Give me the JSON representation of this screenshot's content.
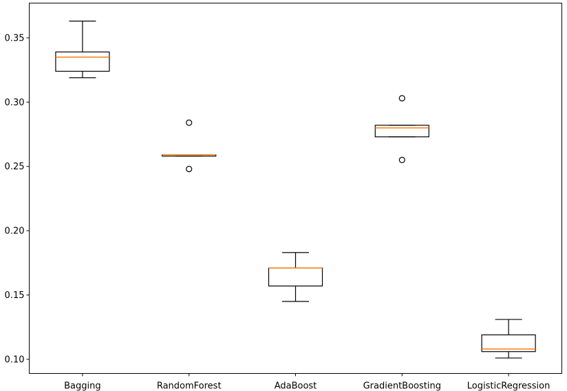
{
  "chart_data": {
    "type": "boxplot",
    "title": "",
    "xlabel": "",
    "ylabel": "",
    "ylim": [
      0.089,
      0.377
    ],
    "yticks": [
      0.1,
      0.15,
      0.2,
      0.25,
      0.3,
      0.35
    ],
    "ytick_labels": [
      "0.10",
      "0.15",
      "0.20",
      "0.25",
      "0.30",
      "0.35"
    ],
    "grid": false,
    "colors": {
      "box": "#000000",
      "median": "#ff7f0e",
      "flier": "#000000",
      "axes": "#000000"
    },
    "categories": [
      "Bagging",
      "RandomForest",
      "AdaBoost",
      "GradientBoosting",
      "LogisticRegression"
    ],
    "boxes": [
      {
        "label": "Bagging",
        "whisker_low": 0.319,
        "q1": 0.324,
        "median": 0.335,
        "q3": 0.339,
        "whisker_high": 0.363,
        "fliers": []
      },
      {
        "label": "RandomForest",
        "whisker_low": 0.258,
        "q1": 0.258,
        "median": 0.259,
        "q3": 0.259,
        "whisker_high": 0.259,
        "fliers": [
          0.284,
          0.248
        ]
      },
      {
        "label": "AdaBoost",
        "whisker_low": 0.145,
        "q1": 0.157,
        "median": 0.171,
        "q3": 0.171,
        "whisker_high": 0.183,
        "fliers": []
      },
      {
        "label": "GradientBoosting",
        "whisker_low": 0.273,
        "q1": 0.273,
        "median": 0.28,
        "q3": 0.282,
        "whisker_high": 0.282,
        "fliers": [
          0.303,
          0.255
        ]
      },
      {
        "label": "LogisticRegression",
        "whisker_low": 0.101,
        "q1": 0.106,
        "median": 0.108,
        "q3": 0.119,
        "whisker_high": 0.131,
        "fliers": []
      }
    ]
  }
}
